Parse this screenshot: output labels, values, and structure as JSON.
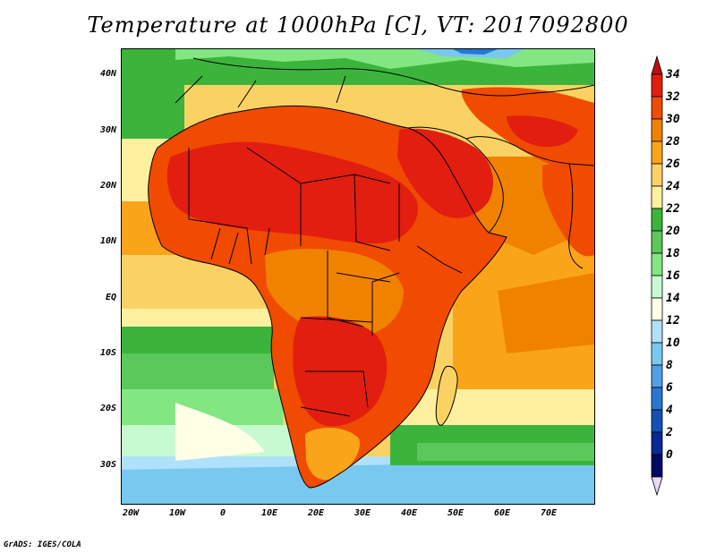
{
  "title": "Temperature at 1000hPa [C], VT: 2017092800",
  "credit": "GrADS: IGES/COLA",
  "lat_ticks": [
    "40N",
    "30N",
    "20N",
    "10N",
    "EQ",
    "10S",
    "20S",
    "30S"
  ],
  "lon_ticks": [
    "20W",
    "10W",
    "0",
    "10E",
    "20E",
    "30E",
    "40E",
    "50E",
    "60E",
    "70E"
  ],
  "colorbar": {
    "labels": [
      "34",
      "32",
      "30",
      "28",
      "26",
      "24",
      "22",
      "20",
      "18",
      "16",
      "14",
      "12",
      "10",
      "8",
      "6",
      "4",
      "2",
      "0"
    ],
    "colors": [
      "#be0f0f",
      "#e11e0f",
      "#f04b00",
      "#f08200",
      "#faa519",
      "#fad264",
      "#fff0a0",
      "#3cb43c",
      "#5ac85a",
      "#82e682",
      "#c8fad2",
      "#ffffe6",
      "#afe1fa",
      "#78c8f0",
      "#50a0e6",
      "#2878d2",
      "#1450b4",
      "#0a2896",
      "#000a64",
      "#e6dcf5"
    ]
  },
  "map": {
    "lon_range": [
      -22,
      80
    ],
    "lat_range": [
      -37,
      45
    ],
    "projection": "latlon",
    "field": "temperature_1000hPa",
    "units": "C"
  }
}
